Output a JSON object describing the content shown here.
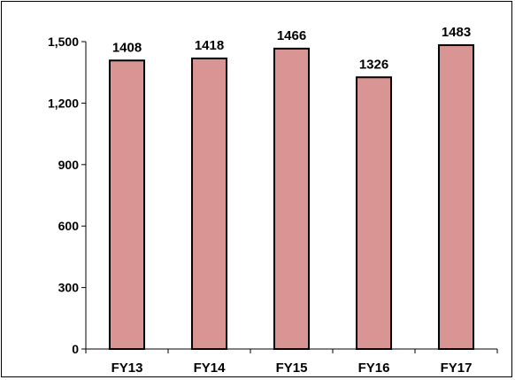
{
  "chart_data": {
    "type": "bar",
    "categories": [
      "FY13",
      "FY14",
      "FY15",
      "FY16",
      "FY17"
    ],
    "values": [
      1408,
      1418,
      1466,
      1326,
      1483
    ],
    "data_labels": [
      "1408",
      "1418",
      "1466",
      "1326",
      "1483"
    ],
    "title": "",
    "xlabel": "",
    "ylabel": "",
    "ylim": [
      0,
      1500
    ],
    "yticks": [
      0,
      300,
      600,
      900,
      1200,
      1500
    ],
    "ytick_labels": [
      "0",
      "300",
      "600",
      "900",
      "1,200",
      "1,500"
    ],
    "grid": false,
    "legend": "none",
    "colors": {
      "bar_fill": "#d99594",
      "bar_stroke": "#000000",
      "axis": "#000000",
      "frame": "#000000"
    }
  }
}
